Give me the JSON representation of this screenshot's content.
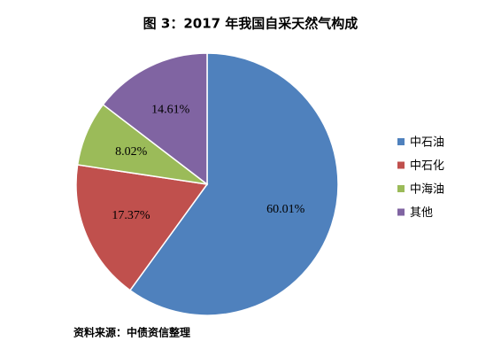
{
  "chart_data": {
    "type": "pie",
    "title": "图 3：2017 年我国自采天然气构成",
    "categories": [
      "中石油",
      "中石化",
      "中海油",
      "其他"
    ],
    "values": [
      60.01,
      17.37,
      8.02,
      14.61
    ],
    "value_labels": [
      "60.01%",
      "17.37%",
      "8.02%",
      "14.61%"
    ],
    "colors": [
      "#4f81bd",
      "#c0504d",
      "#9bbb59",
      "#8064a2"
    ],
    "legend": "right",
    "source": "资料来源：中债资信整理"
  }
}
